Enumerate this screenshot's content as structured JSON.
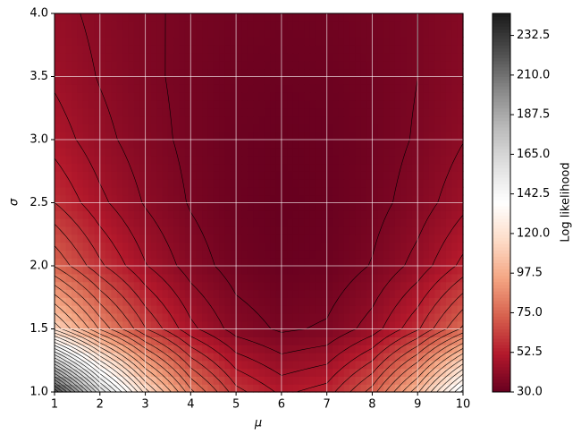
{
  "chart_data": {
    "type": "contour",
    "xlabel": "μ",
    "ylabel": "σ",
    "colorbar_label": "Log likelihood",
    "x": [
      1,
      2,
      3,
      4,
      5,
      6,
      7,
      8,
      9,
      10
    ],
    "y": [
      1,
      1.5,
      2,
      2.5,
      3,
      3.5,
      4
    ],
    "z": [
      [
        226.7,
        165.6,
        117.5,
        82.4,
        60.3,
        51.2,
        55.1,
        72.0,
        101.9,
        144.8
      ],
      [
        112.7,
        85.5,
        64.1,
        48.5,
        38.7,
        34.7,
        36.4,
        43.9,
        57.2,
        76.3
      ],
      [
        74.6,
        59.4,
        47.3,
        38.6,
        33.0,
        30.8,
        31.7,
        36.0,
        43.4,
        54.2
      ],
      [
        58.2,
        48.4,
        40.7,
        35.1,
        31.6,
        30.1,
        30.8,
        33.5,
        38.2,
        45.1
      ],
      [
        50.1,
        43.3,
        38.0,
        34.1,
        31.6,
        30.6,
        31.0,
        32.9,
        36.2,
        41.0
      ],
      [
        45.8,
        40.8,
        36.9,
        34.0,
        32.2,
        31.4,
        31.8,
        33.1,
        35.6,
        39.1
      ],
      [
        43.4,
        39.6,
        36.6,
        34.4,
        33.0,
        32.4,
        32.7,
        33.7,
        35.6,
        38.3
      ]
    ],
    "xlim": [
      1,
      10
    ],
    "xticks": [
      1,
      2,
      3,
      4,
      5,
      6,
      7,
      8,
      9,
      10
    ],
    "ylim": [
      1,
      4
    ],
    "yticks": [
      {
        "value": 1,
        "label": "1.0"
      },
      1.5,
      {
        "value": 2,
        "label": "2.0"
      },
      2.5,
      {
        "value": 3,
        "label": "3.0"
      },
      3.5,
      {
        "value": 4,
        "label": "4.0"
      }
    ],
    "clim": [
      30,
      245
    ],
    "cticks": [
      {
        "value": 30,
        "label": "30.0"
      },
      52.5,
      {
        "value": 75,
        "label": "75.0"
      },
      97.5,
      {
        "value": 120,
        "label": "120.0"
      },
      142.5,
      {
        "value": 165,
        "label": "165.0"
      },
      187.5,
      {
        "value": 210,
        "label": "210.0"
      },
      232.5
    ],
    "colormap": [
      "#67001f",
      "#b2182b",
      "#d6604d",
      "#f4a582",
      "#fddbc7",
      "#ffffff",
      "#e0e0e0",
      "#bababa",
      "#878787",
      "#4d4d4d",
      "#1a1a1a"
    ],
    "grid": true,
    "grid_color": "#ffffff",
    "contour_color": "#000000"
  }
}
